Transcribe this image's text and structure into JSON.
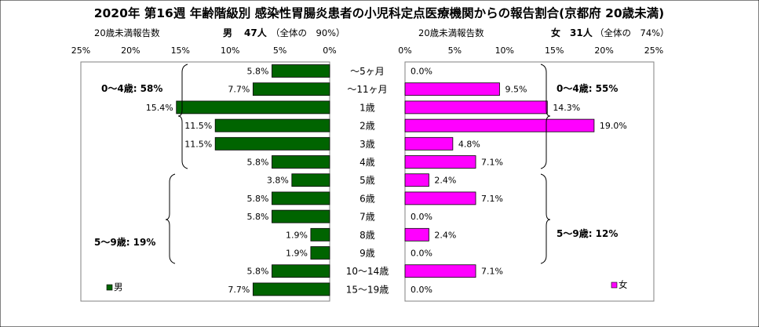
{
  "title": "2020年 第16週 年齢階級別 感染性胃腸炎患者の小児科定点医療機関からの報告割合(京都府 20歳未満)",
  "left_panel": {
    "header_label": "20歳未満報告数",
    "header_sex": "男",
    "header_count": "47人",
    "header_share": "（全体の　90%）",
    "legend": "男",
    "bracket_0_4": "0～4歳: 58%",
    "bracket_5_9": "5～9歳: 19%"
  },
  "right_panel": {
    "header_label": "20歳未満報告数",
    "header_sex": "女",
    "header_count": "31人",
    "header_share": "（全体の　74%）",
    "legend": "女",
    "bracket_0_4": "0～4歳: 55%",
    "bracket_5_9": "5～9歳: 12%"
  },
  "chart_data": {
    "type": "bar",
    "orientation": "horizontal",
    "title": "2020年 第16週 年齢階級別 感染性胃腸炎患者の小児科定点医療機関からの報告割合(京都府 20歳未満)",
    "categories": [
      "～5ヶ月",
      "～11ヶ月",
      "1歳",
      "2歳",
      "3歳",
      "4歳",
      "5歳",
      "6歳",
      "7歳",
      "8歳",
      "9歳",
      "10～14歳",
      "15～19歳"
    ],
    "x_ticks": [
      "0%",
      "5%",
      "10%",
      "15%",
      "20%",
      "25%"
    ],
    "xlim": [
      0,
      25
    ],
    "series": [
      {
        "name": "男",
        "color": "#006400",
        "values": [
          5.8,
          7.7,
          15.4,
          11.5,
          11.5,
          5.8,
          3.8,
          5.8,
          5.8,
          1.9,
          1.9,
          5.8,
          7.7
        ],
        "labels": [
          "5.8%",
          "7.7%",
          "15.4%",
          "11.5%",
          "11.5%",
          "5.8%",
          "3.8%",
          "5.8%",
          "5.8%",
          "1.9%",
          "1.9%",
          "5.8%",
          "7.7%"
        ]
      },
      {
        "name": "女",
        "color": "#ff00ff",
        "values": [
          0.0,
          9.5,
          14.3,
          19.0,
          4.8,
          7.1,
          2.4,
          7.1,
          0.0,
          2.4,
          0.0,
          7.1,
          0.0
        ],
        "labels": [
          "0.0%",
          "9.5%",
          "14.3%",
          "19.0%",
          "4.8%",
          "7.1%",
          "2.4%",
          "7.1%",
          "0.0%",
          "2.4%",
          "0.0%",
          "7.1%",
          "0.0%"
        ]
      }
    ],
    "grid": false,
    "legend_position": "bottom-left (male panel), bottom-right (female panel)"
  }
}
